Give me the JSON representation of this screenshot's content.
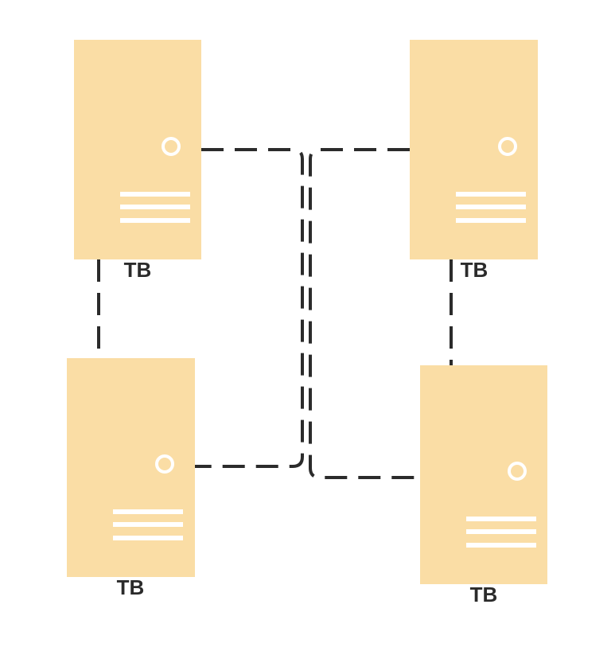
{
  "diagram": {
    "nodes": [
      {
        "id": "server-top-left",
        "label": "TB"
      },
      {
        "id": "server-top-right",
        "label": "TB"
      },
      {
        "id": "server-bottom-left",
        "label": "TB"
      },
      {
        "id": "server-bottom-right",
        "label": "TB"
      }
    ],
    "edges": [
      {
        "from": "server-top-left",
        "to": "server-top-right",
        "style": "dashed"
      },
      {
        "from": "server-top-left",
        "to": "server-bottom-left",
        "style": "dashed"
      },
      {
        "from": "server-top-right",
        "to": "server-bottom-right",
        "style": "dashed"
      },
      {
        "from": "server-top-left",
        "to": "server-bottom-left",
        "via": "center",
        "style": "dashed"
      },
      {
        "from": "server-top-right",
        "to": "server-bottom-right",
        "via": "center",
        "style": "dashed"
      }
    ],
    "colors": {
      "server_fill": "#fadda5",
      "server_detail": "#ffffff",
      "connector": "#2b2b2b",
      "label": "#2b2b2b"
    },
    "icon": "server-icon"
  }
}
